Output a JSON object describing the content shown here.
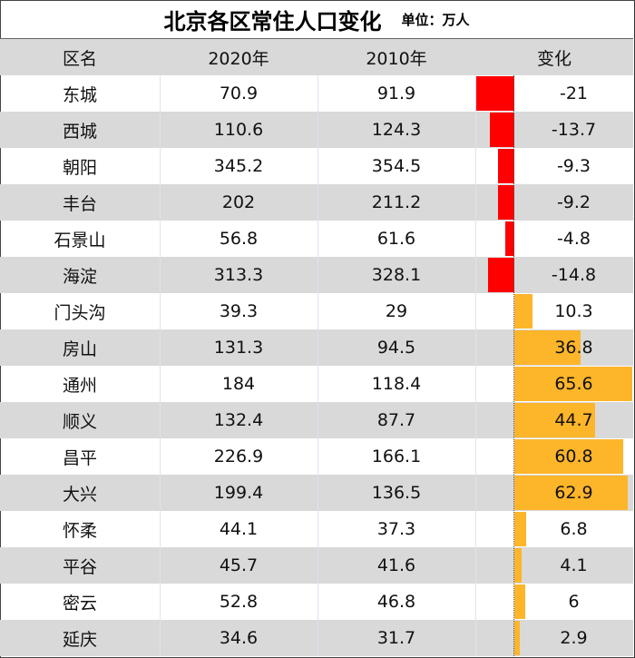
{
  "title": "北京各区常住人口变化",
  "unit": "单位：万人",
  "headers": [
    "区名",
    "2020年",
    "2010年",
    "变化"
  ],
  "colors": {
    "negative": "#ff0000",
    "positive": "#fdb52a",
    "row_alt": "#d9d9d9"
  },
  "rows": [
    {
      "name": "东城",
      "y2020": "70.9",
      "y2010": "91.9",
      "change": "-21"
    },
    {
      "name": "西城",
      "y2020": "110.6",
      "y2010": "124.3",
      "change": "-13.7"
    },
    {
      "name": "朝阳",
      "y2020": "345.2",
      "y2010": "354.5",
      "change": "-9.3"
    },
    {
      "name": "丰台",
      "y2020": "202",
      "y2010": "211.2",
      "change": "-9.2"
    },
    {
      "name": "石景山",
      "y2020": "56.8",
      "y2010": "61.6",
      "change": "-4.8"
    },
    {
      "name": "海淀",
      "y2020": "313.3",
      "y2010": "328.1",
      "change": "-14.8"
    },
    {
      "name": "门头沟",
      "y2020": "39.3",
      "y2010": "29",
      "change": "10.3"
    },
    {
      "name": "房山",
      "y2020": "131.3",
      "y2010": "94.5",
      "change": "36.8"
    },
    {
      "name": "通州",
      "y2020": "184",
      "y2010": "118.4",
      "change": "65.6"
    },
    {
      "name": "顺义",
      "y2020": "132.4",
      "y2010": "87.7",
      "change": "44.7"
    },
    {
      "name": "昌平",
      "y2020": "226.9",
      "y2010": "166.1",
      "change": "60.8"
    },
    {
      "name": "大兴",
      "y2020": "199.4",
      "y2010": "136.5",
      "change": "62.9"
    },
    {
      "name": "怀柔",
      "y2020": "44.1",
      "y2010": "37.3",
      "change": "6.8"
    },
    {
      "name": "平谷",
      "y2020": "45.7",
      "y2010": "41.6",
      "change": "4.1"
    },
    {
      "name": "密云",
      "y2020": "52.8",
      "y2010": "46.8",
      "change": "6"
    },
    {
      "name": "延庆",
      "y2020": "34.6",
      "y2010": "31.7",
      "change": "2.9"
    }
  ],
  "chart_data": {
    "type": "table",
    "title": "北京各区常住人口变化",
    "subtitle": "单位：万人",
    "columns": [
      "区名",
      "2020年",
      "2010年",
      "变化"
    ],
    "categories": [
      "东城",
      "西城",
      "朝阳",
      "丰台",
      "石景山",
      "海淀",
      "门头沟",
      "房山",
      "通州",
      "顺义",
      "昌平",
      "大兴",
      "怀柔",
      "平谷",
      "密云",
      "延庆"
    ],
    "series": [
      {
        "name": "2020年",
        "values": [
          70.9,
          110.6,
          345.2,
          202,
          56.8,
          313.3,
          39.3,
          131.3,
          184,
          132.4,
          226.9,
          199.4,
          44.1,
          45.7,
          52.8,
          34.6
        ]
      },
      {
        "name": "2010年",
        "values": [
          91.9,
          124.3,
          354.5,
          211.2,
          61.6,
          328.1,
          29,
          94.5,
          118.4,
          87.7,
          166.1,
          136.5,
          37.3,
          41.6,
          46.8,
          31.7
        ]
      },
      {
        "name": "变化",
        "values": [
          -21,
          -13.7,
          -9.3,
          -9.2,
          -4.8,
          -14.8,
          10.3,
          36.8,
          65.6,
          44.7,
          60.8,
          62.9,
          6.8,
          4.1,
          6,
          2.9
        ]
      }
    ],
    "notes": "变化 column rendered as in-cell data bars: red for negative, orange for positive"
  }
}
